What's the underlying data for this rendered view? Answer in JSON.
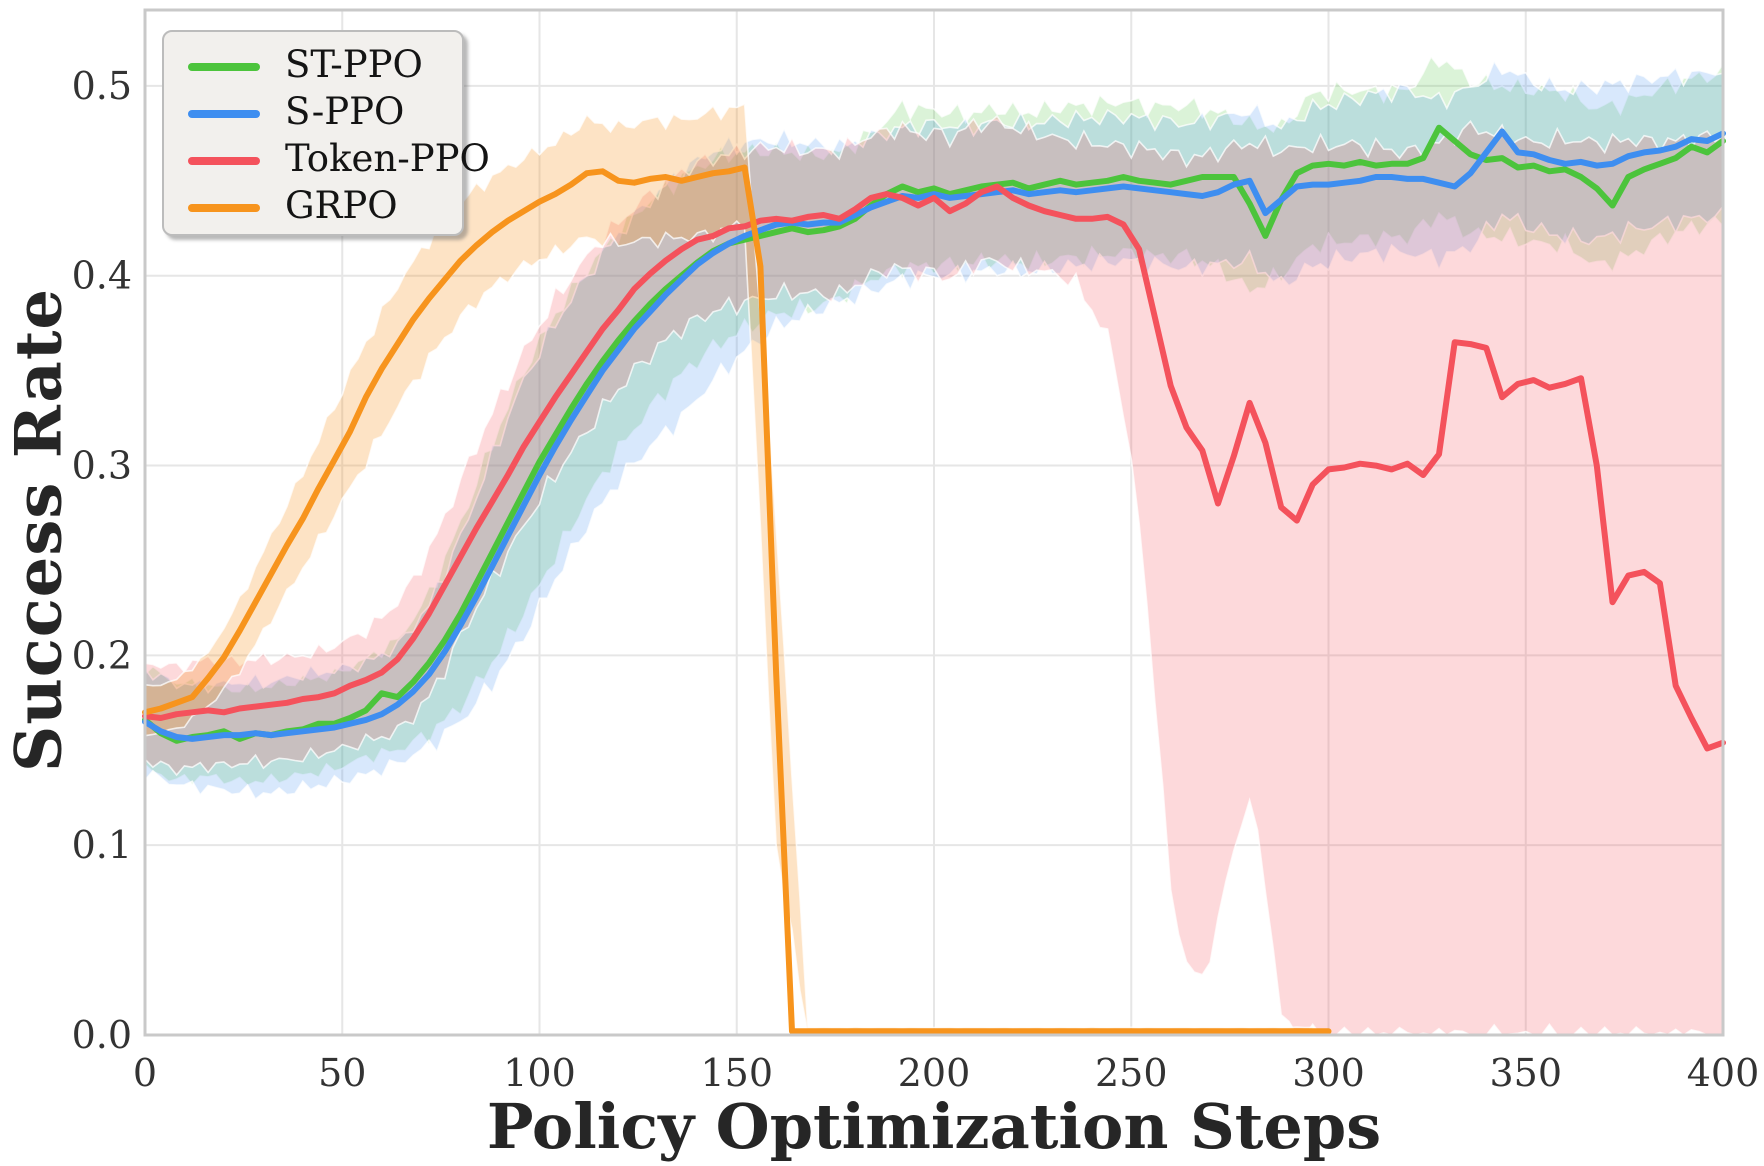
{
  "style": {
    "background": "#ffffff",
    "grid_color": "#e6e6e6",
    "spine_color": "#c9c9c9",
    "tick_color": "#333333",
    "label_color": "#262626",
    "legend_bg": "#f2f0ed",
    "legend_border": "#bcbcbc",
    "band_edge_color": "rgba(255,255,255,0.75)",
    "band_edge_noise": 0.006
  },
  "chart_data": {
    "type": "line",
    "title": "",
    "xlabel": "Policy Optimization Steps",
    "ylabel": "Success Rate",
    "xlim": [
      0,
      400
    ],
    "ylim": [
      0,
      0.54
    ],
    "x_ticks": [
      0,
      50,
      100,
      150,
      200,
      250,
      300,
      350,
      400
    ],
    "y_ticks": [
      0.0,
      0.1,
      0.2,
      0.3,
      0.4,
      0.5
    ],
    "y_tick_labels": [
      "0.0",
      "0.1",
      "0.2",
      "0.3",
      "0.4",
      "0.5"
    ],
    "grid": true,
    "legend_position": "upper-left",
    "series": [
      {
        "name": "ST-PPO",
        "color": "#4cc43c",
        "fill": "rgba(76,196,60,0.20)",
        "line_width": 6,
        "x_start": 0,
        "x_step": 4,
        "values": [
          0.166,
          0.159,
          0.155,
          0.157,
          0.158,
          0.16,
          0.156,
          0.159,
          0.158,
          0.16,
          0.161,
          0.164,
          0.164,
          0.167,
          0.171,
          0.18,
          0.178,
          0.186,
          0.196,
          0.208,
          0.222,
          0.238,
          0.254,
          0.27,
          0.286,
          0.302,
          0.316,
          0.33,
          0.343,
          0.355,
          0.366,
          0.376,
          0.385,
          0.393,
          0.4,
          0.407,
          0.413,
          0.417,
          0.419,
          0.421,
          0.423,
          0.425,
          0.423,
          0.424,
          0.426,
          0.43,
          0.437,
          0.443,
          0.447,
          0.444,
          0.446,
          0.443,
          0.445,
          0.447,
          0.448,
          0.449,
          0.446,
          0.448,
          0.45,
          0.448,
          0.449,
          0.45,
          0.452,
          0.45,
          0.449,
          0.448,
          0.45,
          0.452,
          0.452,
          0.452,
          0.438,
          0.421,
          0.44,
          0.454,
          0.458,
          0.459,
          0.458,
          0.46,
          0.458,
          0.459,
          0.459,
          0.462,
          0.478,
          0.471,
          0.464,
          0.461,
          0.462,
          0.457,
          0.458,
          0.455,
          0.456,
          0.452,
          0.446,
          0.437,
          0.452,
          0.456,
          0.459,
          0.462,
          0.468,
          0.465,
          0.471
        ],
        "band": {
          "x_step": 8,
          "lo": [
            0.14,
            0.134,
            0.136,
            0.133,
            0.134,
            0.137,
            0.14,
            0.146,
            0.15,
            0.158,
            0.173,
            0.196,
            0.222,
            0.252,
            0.282,
            0.308,
            0.33,
            0.348,
            0.362,
            0.372,
            0.38,
            0.382,
            0.388,
            0.398,
            0.404,
            0.405,
            0.406,
            0.408,
            0.406,
            0.409,
            0.41,
            0.412,
            0.41,
            0.41,
            0.404,
            0.392,
            0.4,
            0.416,
            0.418,
            0.42,
            0.42,
            0.432,
            0.422,
            0.42,
            0.417,
            0.416,
            0.405,
            0.41,
            0.419,
            0.425,
            0.428
          ],
          "hi": [
            0.194,
            0.186,
            0.184,
            0.182,
            0.184,
            0.187,
            0.19,
            0.198,
            0.208,
            0.232,
            0.27,
            0.312,
            0.35,
            0.38,
            0.403,
            0.423,
            0.44,
            0.452,
            0.462,
            0.466,
            0.466,
            0.464,
            0.465,
            0.475,
            0.489,
            0.487,
            0.485,
            0.488,
            0.486,
            0.489,
            0.49,
            0.492,
            0.489,
            0.49,
            0.486,
            0.48,
            0.478,
            0.496,
            0.498,
            0.497,
            0.498,
            0.515,
            0.503,
            0.5,
            0.498,
            0.497,
            0.488,
            0.492,
            0.499,
            0.504,
            0.507
          ]
        }
      },
      {
        "name": "S-PPO",
        "color": "#3e8ef0",
        "fill": "rgba(62,142,240,0.20)",
        "line_width": 6,
        "x_start": 0,
        "x_step": 4,
        "values": [
          0.165,
          0.16,
          0.157,
          0.156,
          0.157,
          0.158,
          0.158,
          0.159,
          0.158,
          0.159,
          0.16,
          0.161,
          0.162,
          0.164,
          0.166,
          0.169,
          0.174,
          0.181,
          0.19,
          0.202,
          0.216,
          0.231,
          0.247,
          0.263,
          0.279,
          0.295,
          0.31,
          0.324,
          0.337,
          0.35,
          0.361,
          0.372,
          0.381,
          0.39,
          0.398,
          0.406,
          0.412,
          0.417,
          0.421,
          0.424,
          0.427,
          0.428,
          0.427,
          0.428,
          0.428,
          0.432,
          0.436,
          0.439,
          0.442,
          0.441,
          0.443,
          0.441,
          0.442,
          0.443,
          0.444,
          0.445,
          0.443,
          0.444,
          0.445,
          0.444,
          0.445,
          0.446,
          0.447,
          0.446,
          0.445,
          0.444,
          0.443,
          0.442,
          0.444,
          0.448,
          0.45,
          0.433,
          0.44,
          0.447,
          0.448,
          0.448,
          0.449,
          0.45,
          0.452,
          0.452,
          0.451,
          0.451,
          0.449,
          0.447,
          0.454,
          0.465,
          0.476,
          0.465,
          0.464,
          0.461,
          0.459,
          0.46,
          0.458,
          0.459,
          0.463,
          0.465,
          0.466,
          0.468,
          0.472,
          0.471,
          0.475
        ],
        "band": {
          "x_step": 8,
          "lo": [
            0.138,
            0.132,
            0.13,
            0.128,
            0.127,
            0.13,
            0.133,
            0.137,
            0.143,
            0.152,
            0.165,
            0.185,
            0.21,
            0.24,
            0.268,
            0.292,
            0.31,
            0.325,
            0.345,
            0.36,
            0.373,
            0.38,
            0.386,
            0.392,
            0.398,
            0.4,
            0.401,
            0.403,
            0.402,
            0.404,
            0.406,
            0.408,
            0.406,
            0.404,
            0.406,
            0.408,
            0.395,
            0.405,
            0.409,
            0.412,
            0.412,
            0.409,
            0.415,
            0.432,
            0.425,
            0.42,
            0.419,
            0.424,
            0.427,
            0.43,
            0.432
          ],
          "hi": [
            0.192,
            0.185,
            0.184,
            0.186,
            0.186,
            0.19,
            0.192,
            0.196,
            0.205,
            0.226,
            0.262,
            0.305,
            0.345,
            0.375,
            0.4,
            0.422,
            0.44,
            0.455,
            0.466,
            0.47,
            0.472,
            0.47,
            0.468,
            0.473,
            0.478,
            0.48,
            0.478,
            0.481,
            0.48,
            0.482,
            0.483,
            0.484,
            0.482,
            0.48,
            0.483,
            0.487,
            0.478,
            0.488,
            0.492,
            0.496,
            0.498,
            0.492,
            0.499,
            0.51,
            0.502,
            0.498,
            0.5,
            0.502,
            0.505,
            0.506,
            0.508
          ]
        }
      },
      {
        "name": "Token-PPO",
        "color": "#f4525c",
        "fill": "rgba(244,82,92,0.22)",
        "line_width": 6,
        "x_start": 0,
        "x_step": 4,
        "values": [
          0.168,
          0.167,
          0.169,
          0.17,
          0.171,
          0.17,
          0.172,
          0.173,
          0.174,
          0.175,
          0.177,
          0.178,
          0.18,
          0.184,
          0.187,
          0.191,
          0.198,
          0.209,
          0.222,
          0.237,
          0.252,
          0.267,
          0.281,
          0.295,
          0.31,
          0.323,
          0.336,
          0.348,
          0.36,
          0.372,
          0.382,
          0.393,
          0.401,
          0.408,
          0.414,
          0.419,
          0.421,
          0.425,
          0.426,
          0.429,
          0.43,
          0.429,
          0.431,
          0.432,
          0.43,
          0.435,
          0.441,
          0.443,
          0.441,
          0.437,
          0.441,
          0.434,
          0.438,
          0.444,
          0.447,
          0.441,
          0.437,
          0.434,
          0.432,
          0.43,
          0.43,
          0.431,
          0.427,
          0.414,
          0.378,
          0.342,
          0.32,
          0.308,
          0.28,
          0.305,
          0.333,
          0.312,
          0.278,
          0.271,
          0.29,
          0.298,
          0.299,
          0.301,
          0.3,
          0.298,
          0.301,
          0.295,
          0.306,
          0.365,
          0.364,
          0.362,
          0.336,
          0.343,
          0.345,
          0.341,
          0.343,
          0.346,
          0.3,
          0.228,
          0.242,
          0.244,
          0.238,
          0.184,
          0.167,
          0.151,
          0.154
        ],
        "band": {
          "x_step": 4,
          "lo": [
            0.145,
            0.142,
            0.14,
            0.141,
            0.142,
            0.142,
            0.143,
            0.144,
            0.144,
            0.145,
            0.146,
            0.148,
            0.15,
            0.152,
            0.155,
            0.157,
            0.16,
            0.168,
            0.178,
            0.193,
            0.21,
            0.225,
            0.24,
            0.254,
            0.268,
            0.282,
            0.295,
            0.307,
            0.318,
            0.33,
            0.34,
            0.35,
            0.358,
            0.366,
            0.372,
            0.377,
            0.381,
            0.384,
            0.386,
            0.388,
            0.39,
            0.391,
            0.391,
            0.39,
            0.39,
            0.395,
            0.4,
            0.403,
            0.404,
            0.401,
            0.402,
            0.398,
            0.404,
            0.407,
            0.408,
            0.404,
            0.404,
            0.402,
            0.4,
            0.396,
            0.382,
            0.368,
            0.33,
            0.27,
            0.18,
            0.075,
            0.038,
            0.028,
            0.06,
            0.098,
            0.125,
            0.08,
            0.01,
            0,
            0,
            0,
            0,
            0,
            0,
            0,
            0,
            0,
            0,
            0,
            0,
            0,
            0,
            0,
            0,
            0,
            0,
            0,
            0,
            0,
            0,
            0,
            0,
            0,
            0,
            0,
            0
          ],
          "hi": [
            0.196,
            0.195,
            0.194,
            0.196,
            0.198,
            0.197,
            0.197,
            0.198,
            0.198,
            0.199,
            0.2,
            0.202,
            0.205,
            0.209,
            0.213,
            0.22,
            0.228,
            0.24,
            0.255,
            0.273,
            0.292,
            0.31,
            0.328,
            0.344,
            0.36,
            0.374,
            0.388,
            0.399,
            0.41,
            0.42,
            0.428,
            0.436,
            0.443,
            0.449,
            0.455,
            0.459,
            0.462,
            0.464,
            0.466,
            0.467,
            0.468,
            0.467,
            0.466,
            0.466,
            0.466,
            0.47,
            0.474,
            0.476,
            0.478,
            0.474,
            0.476,
            0.472,
            0.478,
            0.48,
            0.481,
            0.478,
            0.476,
            0.474,
            0.472,
            0.471,
            0.47,
            0.469,
            0.468,
            0.467,
            0.466,
            0.464,
            0.462,
            0.463,
            0.465,
            0.468,
            0.47,
            0.468,
            0.466,
            0.467,
            0.469,
            0.468,
            0.47,
            0.468,
            0.468,
            0.466,
            0.465,
            0.467,
            0.47,
            0.474,
            0.478,
            0.476,
            0.474,
            0.472,
            0.47,
            0.471,
            0.472,
            0.471,
            0.47,
            0.47,
            0.472,
            0.471,
            0.47,
            0.471,
            0.472,
            0.473,
            0.474
          ]
        }
      },
      {
        "name": "GRPO",
        "color": "#f7941d",
        "fill": "rgba(247,148,29,0.26)",
        "line_width": 6,
        "x_start": 0,
        "x_step": 4,
        "end_step": 300,
        "values": [
          0.17,
          0.172,
          0.175,
          0.178,
          0.188,
          0.199,
          0.213,
          0.228,
          0.243,
          0.258,
          0.272,
          0.288,
          0.303,
          0.318,
          0.336,
          0.351,
          0.364,
          0.377,
          0.388,
          0.398,
          0.408,
          0.416,
          0.423,
          0.429,
          0.434,
          0.439,
          0.443,
          0.448,
          0.454,
          0.455,
          0.45,
          0.449,
          0.451,
          0.452,
          0.45,
          0.452,
          0.454,
          0.455,
          0.457,
          0.405,
          0.19,
          0.002,
          0.002,
          0.002,
          0.002,
          0.002,
          0.002,
          0.002,
          0.002,
          0.002,
          0.002,
          0.002,
          0.002,
          0.002,
          0.002,
          0.002,
          0.002,
          0.002,
          0.002,
          0.002,
          0.002,
          0.002,
          0.002,
          0.002,
          0.002,
          0.002,
          0.002,
          0.002,
          0.002,
          0.002,
          0.002,
          0.002,
          0.002,
          0.002,
          0.002,
          0.002
        ],
        "band": {
          "x_step": 8,
          "lo": [
            0.158,
            0.161,
            0.173,
            0.192,
            0.219,
            0.246,
            0.274,
            0.302,
            0.331,
            0.356,
            0.378,
            0.394,
            0.405,
            0.412,
            0.42,
            0.417,
            0.419,
            0.42,
            0.422,
            0.428,
            0.1,
            0.001,
            0.001,
            0.001,
            0.001,
            0.001,
            0.001,
            0.001,
            0.001,
            0.001,
            0.001,
            0.001,
            0.001,
            0.001,
            0.001,
            0.001,
            0.001,
            0.001
          ],
          "hi": [
            0.183,
            0.187,
            0.201,
            0.229,
            0.263,
            0.296,
            0.331,
            0.365,
            0.395,
            0.419,
            0.439,
            0.452,
            0.462,
            0.47,
            0.482,
            0.478,
            0.482,
            0.482,
            0.486,
            0.489,
            0.27,
            0.004,
            0.004,
            0.004,
            0.004,
            0.004,
            0.004,
            0.004,
            0.004,
            0.004,
            0.004,
            0.004,
            0.004,
            0.004,
            0.004,
            0.004,
            0.004,
            0.004
          ]
        }
      }
    ]
  }
}
